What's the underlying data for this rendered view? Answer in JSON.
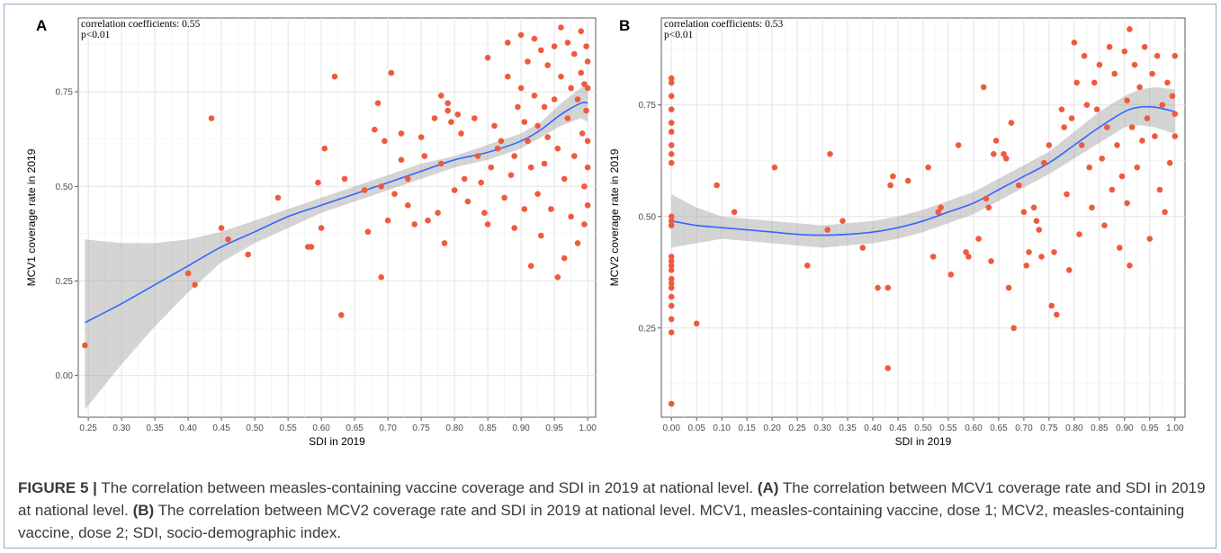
{
  "caption": {
    "label": "FIGURE 5 |",
    "text": " The correlation between measles-containing vaccine coverage and SDI in 2019 at national level. ",
    "a_ref": "(A)",
    "a_text": " The correlation between MCV1 coverage rate and SDI in 2019 at national level. ",
    "b_ref": "(B)",
    "b_text": " The correlation between MCV2 coverage rate and SDI in 2019 at national level. MCV1, measles-containing vaccine, dose 1; MCV2, measles-containing vaccine, dose 2; SDI, socio-demographic index."
  },
  "chart_data": [
    {
      "type": "scatter",
      "panel": "A",
      "title": "",
      "annotation_lines": [
        "correlation coefficients: 0.55",
        "p<0.01"
      ],
      "xlabel": "SDI in 2019",
      "ylabel": "MCV1 coverage rate in 2019",
      "xlim": [
        0.235,
        1.012
      ],
      "ylim": [
        -0.11,
        0.945
      ],
      "xticks": [
        0.25,
        0.3,
        0.35,
        0.4,
        0.45,
        0.5,
        0.55,
        0.6,
        0.65,
        0.7,
        0.75,
        0.8,
        0.85,
        0.9,
        0.95,
        1.0
      ],
      "xtick_labels": [
        "0.25",
        "0.30",
        "0.35",
        "0.40",
        "0.45",
        "0.50",
        "0.55",
        "0.60",
        "0.65",
        "0.70",
        "0.75",
        "0.80",
        "0.85",
        "0.90",
        "0.95",
        "1.00"
      ],
      "yticks": [
        0.0,
        0.25,
        0.5,
        0.75
      ],
      "ytick_labels": [
        "0.00",
        "0.25",
        "0.50",
        "0.75"
      ],
      "grid": true,
      "points": [
        [
          0.245,
          0.08
        ],
        [
          0.4,
          0.27
        ],
        [
          0.41,
          0.24
        ],
        [
          0.435,
          0.68
        ],
        [
          0.45,
          0.39
        ],
        [
          0.46,
          0.36
        ],
        [
          0.49,
          0.32
        ],
        [
          0.535,
          0.47
        ],
        [
          0.58,
          0.34
        ],
        [
          0.585,
          0.34
        ],
        [
          0.595,
          0.51
        ],
        [
          0.6,
          0.39
        ],
        [
          0.605,
          0.6
        ],
        [
          0.62,
          0.79
        ],
        [
          0.63,
          0.16
        ],
        [
          0.635,
          0.52
        ],
        [
          0.665,
          0.49
        ],
        [
          0.67,
          0.38
        ],
        [
          0.68,
          0.65
        ],
        [
          0.685,
          0.72
        ],
        [
          0.69,
          0.5
        ],
        [
          0.69,
          0.26
        ],
        [
          0.695,
          0.62
        ],
        [
          0.7,
          0.41
        ],
        [
          0.705,
          0.8
        ],
        [
          0.71,
          0.48
        ],
        [
          0.72,
          0.64
        ],
        [
          0.72,
          0.57
        ],
        [
          0.73,
          0.52
        ],
        [
          0.73,
          0.45
        ],
        [
          0.74,
          0.4
        ],
        [
          0.75,
          0.63
        ],
        [
          0.755,
          0.58
        ],
        [
          0.76,
          0.41
        ],
        [
          0.77,
          0.68
        ],
        [
          0.775,
          0.43
        ],
        [
          0.78,
          0.74
        ],
        [
          0.78,
          0.56
        ],
        [
          0.785,
          0.35
        ],
        [
          0.79,
          0.72
        ],
        [
          0.79,
          0.7
        ],
        [
          0.795,
          0.67
        ],
        [
          0.8,
          0.49
        ],
        [
          0.805,
          0.69
        ],
        [
          0.81,
          0.64
        ],
        [
          0.815,
          0.52
        ],
        [
          0.82,
          0.46
        ],
        [
          0.83,
          0.68
        ],
        [
          0.835,
          0.58
        ],
        [
          0.84,
          0.51
        ],
        [
          0.845,
          0.43
        ],
        [
          0.85,
          0.84
        ],
        [
          0.85,
          0.4
        ],
        [
          0.855,
          0.55
        ],
        [
          0.86,
          0.66
        ],
        [
          0.865,
          0.6
        ],
        [
          0.87,
          0.62
        ],
        [
          0.875,
          0.47
        ],
        [
          0.88,
          0.88
        ],
        [
          0.88,
          0.79
        ],
        [
          0.885,
          0.53
        ],
        [
          0.89,
          0.39
        ],
        [
          0.89,
          0.58
        ],
        [
          0.895,
          0.71
        ],
        [
          0.9,
          0.9
        ],
        [
          0.9,
          0.76
        ],
        [
          0.905,
          0.67
        ],
        [
          0.905,
          0.44
        ],
        [
          0.91,
          0.83
        ],
        [
          0.91,
          0.62
        ],
        [
          0.915,
          0.29
        ],
        [
          0.915,
          0.55
        ],
        [
          0.92,
          0.89
        ],
        [
          0.92,
          0.74
        ],
        [
          0.925,
          0.66
        ],
        [
          0.925,
          0.48
        ],
        [
          0.93,
          0.86
        ],
        [
          0.93,
          0.37
        ],
        [
          0.935,
          0.71
        ],
        [
          0.935,
          0.56
        ],
        [
          0.94,
          0.82
        ],
        [
          0.94,
          0.63
        ],
        [
          0.945,
          0.44
        ],
        [
          0.95,
          0.87
        ],
        [
          0.95,
          0.73
        ],
        [
          0.955,
          0.26
        ],
        [
          0.955,
          0.6
        ],
        [
          0.96,
          0.92
        ],
        [
          0.96,
          0.79
        ],
        [
          0.965,
          0.31
        ],
        [
          0.965,
          0.52
        ],
        [
          0.97,
          0.88
        ],
        [
          0.97,
          0.68
        ],
        [
          0.975,
          0.76
        ],
        [
          0.975,
          0.42
        ],
        [
          0.98,
          0.85
        ],
        [
          0.98,
          0.58
        ],
        [
          0.985,
          0.73
        ],
        [
          0.985,
          0.35
        ],
        [
          0.99,
          0.91
        ],
        [
          0.99,
          0.8
        ],
        [
          0.992,
          0.64
        ],
        [
          0.995,
          0.5
        ],
        [
          0.995,
          0.4
        ],
        [
          0.998,
          0.87
        ],
        [
          0.998,
          0.7
        ],
        [
          1.0,
          0.83
        ],
        [
          1.0,
          0.76
        ],
        [
          1.0,
          0.62
        ],
        [
          1.0,
          0.55
        ],
        [
          1.0,
          0.45
        ],
        [
          0.995,
          0.77
        ]
      ],
      "fit_line": {
        "x": [
          0.245,
          0.3,
          0.35,
          0.4,
          0.45,
          0.5,
          0.55,
          0.6,
          0.65,
          0.7,
          0.75,
          0.8,
          0.85,
          0.9,
          0.93,
          0.96,
          0.99,
          1.0
        ],
        "y": [
          0.14,
          0.19,
          0.24,
          0.29,
          0.34,
          0.38,
          0.42,
          0.45,
          0.48,
          0.51,
          0.54,
          0.57,
          0.59,
          0.62,
          0.65,
          0.69,
          0.72,
          0.72
        ]
      },
      "ci_upper": [
        0.36,
        0.35,
        0.35,
        0.36,
        0.38,
        0.41,
        0.44,
        0.47,
        0.5,
        0.53,
        0.56,
        0.58,
        0.61,
        0.64,
        0.67,
        0.72,
        0.76,
        0.77
      ],
      "ci_lower": [
        -0.09,
        0.03,
        0.13,
        0.22,
        0.3,
        0.35,
        0.39,
        0.43,
        0.46,
        0.49,
        0.52,
        0.55,
        0.57,
        0.6,
        0.63,
        0.66,
        0.68,
        0.67
      ],
      "colors": {
        "points": "#f05a3c",
        "line": "#3366ff",
        "band": "#999999"
      }
    },
    {
      "type": "scatter",
      "panel": "B",
      "title": "",
      "annotation_lines": [
        "correlation coefficients: 0.53",
        "p<0.01"
      ],
      "xlabel": "SDI in 2019",
      "ylabel": "MCV2 coverage rate in 2019",
      "xlim": [
        -0.02,
        1.02
      ],
      "ylim": [
        0.05,
        0.945
      ],
      "xticks": [
        0.0,
        0.05,
        0.1,
        0.15,
        0.2,
        0.25,
        0.3,
        0.35,
        0.4,
        0.45,
        0.5,
        0.55,
        0.6,
        0.65,
        0.7,
        0.75,
        0.8,
        0.85,
        0.9,
        0.95,
        1.0
      ],
      "xtick_labels": [
        "0.00",
        "0.05",
        "0.10",
        "0.15",
        "0.20",
        "0.25",
        "0.30",
        "0.35",
        "0.40",
        "0.45",
        "0.50",
        "0.55",
        "0.60",
        "0.65",
        "0.70",
        "0.75",
        "0.80",
        "0.85",
        "0.90",
        "0.95",
        "1.00"
      ],
      "yticks": [
        0.25,
        0.5,
        0.75
      ],
      "ytick_labels": [
        "0.25",
        "0.50",
        "0.75"
      ],
      "grid": true,
      "points": [
        [
          0.0,
          0.81
        ],
        [
          0.0,
          0.8
        ],
        [
          0.0,
          0.77
        ],
        [
          0.0,
          0.74
        ],
        [
          0.0,
          0.71
        ],
        [
          0.0,
          0.69
        ],
        [
          0.0,
          0.66
        ],
        [
          0.0,
          0.64
        ],
        [
          0.0,
          0.62
        ],
        [
          0.0,
          0.5
        ],
        [
          0.0,
          0.49
        ],
        [
          0.0,
          0.48
        ],
        [
          0.0,
          0.41
        ],
        [
          0.0,
          0.4
        ],
        [
          0.0,
          0.39
        ],
        [
          0.0,
          0.38
        ],
        [
          0.0,
          0.36
        ],
        [
          0.0,
          0.35
        ],
        [
          0.0,
          0.34
        ],
        [
          0.0,
          0.32
        ],
        [
          0.0,
          0.3
        ],
        [
          0.0,
          0.27
        ],
        [
          0.0,
          0.24
        ],
        [
          0.0,
          0.08
        ],
        [
          0.05,
          0.26
        ],
        [
          0.09,
          0.57
        ],
        [
          0.125,
          0.51
        ],
        [
          0.205,
          0.61
        ],
        [
          0.27,
          0.39
        ],
        [
          0.31,
          0.47
        ],
        [
          0.315,
          0.64
        ],
        [
          0.34,
          0.49
        ],
        [
          0.38,
          0.43
        ],
        [
          0.41,
          0.34
        ],
        [
          0.43,
          0.34
        ],
        [
          0.43,
          0.16
        ],
        [
          0.435,
          0.57
        ],
        [
          0.44,
          0.59
        ],
        [
          0.47,
          0.58
        ],
        [
          0.51,
          0.61
        ],
        [
          0.52,
          0.41
        ],
        [
          0.53,
          0.51
        ],
        [
          0.535,
          0.52
        ],
        [
          0.555,
          0.37
        ],
        [
          0.57,
          0.66
        ],
        [
          0.585,
          0.42
        ],
        [
          0.59,
          0.41
        ],
        [
          0.61,
          0.45
        ],
        [
          0.62,
          0.79
        ],
        [
          0.625,
          0.54
        ],
        [
          0.63,
          0.52
        ],
        [
          0.635,
          0.4
        ],
        [
          0.64,
          0.64
        ],
        [
          0.645,
          0.67
        ],
        [
          0.66,
          0.64
        ],
        [
          0.665,
          0.63
        ],
        [
          0.67,
          0.34
        ],
        [
          0.675,
          0.71
        ],
        [
          0.68,
          0.25
        ],
        [
          0.69,
          0.57
        ],
        [
          0.7,
          0.51
        ],
        [
          0.705,
          0.39
        ],
        [
          0.71,
          0.42
        ],
        [
          0.72,
          0.52
        ],
        [
          0.725,
          0.49
        ],
        [
          0.73,
          0.47
        ],
        [
          0.735,
          0.41
        ],
        [
          0.74,
          0.62
        ],
        [
          0.75,
          0.66
        ],
        [
          0.755,
          0.3
        ],
        [
          0.76,
          0.42
        ],
        [
          0.765,
          0.28
        ],
        [
          0.775,
          0.74
        ],
        [
          0.78,
          0.7
        ],
        [
          0.785,
          0.55
        ],
        [
          0.79,
          0.38
        ],
        [
          0.795,
          0.72
        ],
        [
          0.8,
          0.89
        ],
        [
          0.805,
          0.8
        ],
        [
          0.81,
          0.46
        ],
        [
          0.815,
          0.66
        ],
        [
          0.82,
          0.86
        ],
        [
          0.825,
          0.75
        ],
        [
          0.83,
          0.61
        ],
        [
          0.835,
          0.52
        ],
        [
          0.84,
          0.8
        ],
        [
          0.845,
          0.74
        ],
        [
          0.85,
          0.84
        ],
        [
          0.855,
          0.63
        ],
        [
          0.86,
          0.48
        ],
        [
          0.865,
          0.7
        ],
        [
          0.87,
          0.88
        ],
        [
          0.875,
          0.56
        ],
        [
          0.88,
          0.82
        ],
        [
          0.885,
          0.66
        ],
        [
          0.89,
          0.43
        ],
        [
          0.895,
          0.59
        ],
        [
          0.9,
          0.87
        ],
        [
          0.905,
          0.76
        ],
        [
          0.905,
          0.53
        ],
        [
          0.91,
          0.92
        ],
        [
          0.91,
          0.39
        ],
        [
          0.915,
          0.7
        ],
        [
          0.92,
          0.84
        ],
        [
          0.925,
          0.61
        ],
        [
          0.93,
          0.79
        ],
        [
          0.935,
          0.67
        ],
        [
          0.94,
          0.88
        ],
        [
          0.945,
          0.72
        ],
        [
          0.95,
          0.45
        ],
        [
          0.955,
          0.82
        ],
        [
          0.96,
          0.68
        ],
        [
          0.965,
          0.86
        ],
        [
          0.97,
          0.56
        ],
        [
          0.975,
          0.75
        ],
        [
          0.98,
          0.51
        ],
        [
          0.985,
          0.8
        ],
        [
          0.99,
          0.62
        ],
        [
          0.995,
          0.77
        ],
        [
          1.0,
          0.86
        ],
        [
          1.0,
          0.73
        ],
        [
          1.0,
          0.68
        ]
      ],
      "fit_line": {
        "x": [
          0.0,
          0.05,
          0.1,
          0.15,
          0.2,
          0.25,
          0.3,
          0.35,
          0.4,
          0.45,
          0.5,
          0.55,
          0.6,
          0.65,
          0.7,
          0.75,
          0.8,
          0.85,
          0.9,
          0.93,
          0.96,
          1.0
        ],
        "y": [
          0.49,
          0.48,
          0.475,
          0.47,
          0.465,
          0.46,
          0.458,
          0.46,
          0.465,
          0.475,
          0.49,
          0.51,
          0.53,
          0.56,
          0.59,
          0.62,
          0.66,
          0.7,
          0.735,
          0.745,
          0.745,
          0.735
        ]
      },
      "ci_upper": [
        0.55,
        0.52,
        0.5,
        0.495,
        0.49,
        0.485,
        0.48,
        0.485,
        0.49,
        0.5,
        0.515,
        0.535,
        0.555,
        0.585,
        0.615,
        0.645,
        0.69,
        0.735,
        0.77,
        0.785,
        0.79,
        0.785
      ],
      "ci_lower": [
        0.43,
        0.44,
        0.45,
        0.445,
        0.44,
        0.435,
        0.43,
        0.435,
        0.44,
        0.45,
        0.465,
        0.485,
        0.505,
        0.535,
        0.565,
        0.595,
        0.63,
        0.665,
        0.7,
        0.705,
        0.7,
        0.685
      ],
      "colors": {
        "points": "#f05a3c",
        "line": "#3366ff",
        "band": "#999999"
      }
    }
  ]
}
